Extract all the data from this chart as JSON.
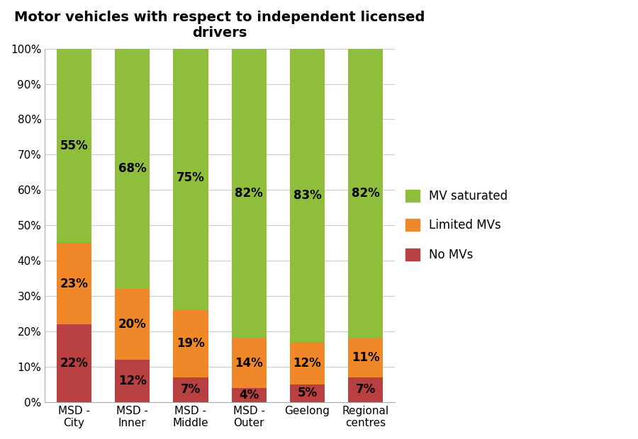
{
  "title": "Motor vehicles with respect to independent licensed\ndrivers",
  "categories": [
    "MSD -\nCity",
    "MSD -\nInner",
    "MSD -\nMiddle",
    "MSD -\nOuter",
    "Geelong",
    "Regional\ncentres"
  ],
  "no_mvs": [
    22,
    12,
    7,
    4,
    5,
    7
  ],
  "limited_mvs": [
    23,
    20,
    19,
    14,
    12,
    11
  ],
  "mv_saturated": [
    55,
    68,
    75,
    82,
    83,
    82
  ],
  "color_no_mvs": "#b94040",
  "color_limited_mvs": "#f0882a",
  "color_mv_saturated": "#8fbe3c",
  "legend_labels": [
    "MV saturated",
    "Limited MVs",
    "No MVs"
  ],
  "ylabel_ticks": [
    "0%",
    "10%",
    "20%",
    "30%",
    "40%",
    "50%",
    "60%",
    "70%",
    "80%",
    "90%",
    "100%"
  ],
  "title_fontsize": 14,
  "label_fontsize": 12,
  "tick_fontsize": 11,
  "legend_fontsize": 12,
  "bar_width": 0.6
}
